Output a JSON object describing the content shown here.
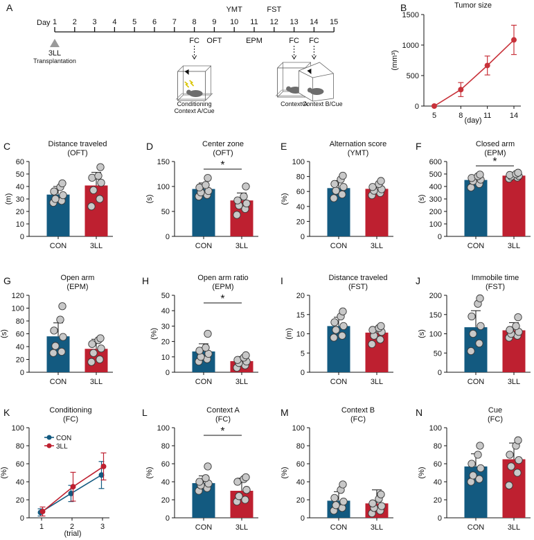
{
  "timeline": {
    "panel_label": "A",
    "day_label": "Day",
    "days": [
      "1",
      "2",
      "3",
      "4",
      "5",
      "6",
      "7",
      "8",
      "9",
      "10",
      "11",
      "12",
      "13",
      "14",
      "15"
    ],
    "above_labels": [
      {
        "day": 10,
        "text": "YMT"
      },
      {
        "day": 12,
        "text": "FST"
      }
    ],
    "below_labels": [
      {
        "day": 8,
        "text": "FC",
        "arrow": true
      },
      {
        "day": 9,
        "text": "OFT",
        "arrow": false
      },
      {
        "day": 11,
        "text": "EPM",
        "arrow": false
      },
      {
        "day": 13,
        "text": "FC",
        "arrow": true
      },
      {
        "day": 14,
        "text": "FC",
        "arrow": true
      }
    ],
    "transplant_label": "3LL",
    "transplant_sub": "Transplantation",
    "contexts": [
      {
        "day": 8,
        "line1": "Conditioning",
        "line2": "Context A/Cue"
      },
      {
        "day": 13,
        "line1": "Context A",
        "line2": ""
      },
      {
        "day": 14,
        "line1": "Context B/Cue",
        "line2": ""
      }
    ]
  },
  "colors": {
    "con": "#135a80",
    "lll": "#be2030",
    "dot": "#c8c8c8",
    "tumor": "#c8323a"
  },
  "chart_data": [
    {
      "id": "B",
      "type": "line",
      "panel_label": "B",
      "title": "Tumor size",
      "xlabel": "(day)",
      "ylabel": "(mm³)",
      "x": [
        5,
        8,
        11,
        14
      ],
      "values": [
        0,
        270,
        665,
        1085
      ],
      "err": [
        0,
        115,
        155,
        240
      ],
      "ylim": [
        0,
        1500
      ],
      "yticks": [
        0,
        500,
        1000,
        1500
      ]
    },
    {
      "id": "C",
      "type": "bar",
      "panel_label": "C",
      "title_lines": [
        "Distance traveled",
        "(OFT)"
      ],
      "ylabel": "(m)",
      "categories": [
        "CON",
        "3LL"
      ],
      "values": [
        33.5,
        40.8
      ],
      "err": [
        6.5,
        10.5
      ],
      "points": [
        [
          27,
          28.5,
          30,
          33,
          36,
          39.5,
          42.5
        ],
        [
          24,
          30,
          37,
          43,
          47,
          48.5,
          55.5
        ]
      ],
      "ylim": [
        0,
        60
      ],
      "yticks": [
        0,
        10,
        20,
        30,
        40,
        50,
        60
      ],
      "sig": ""
    },
    {
      "id": "D",
      "type": "bar",
      "panel_label": "D",
      "title_lines": [
        "Center zone",
        "(OFT)"
      ],
      "ylabel": "(s)",
      "categories": [
        "CON",
        "3LL"
      ],
      "values": [
        95,
        72
      ],
      "err": [
        12,
        15
      ],
      "points": [
        [
          80,
          83,
          88,
          91,
          98,
          103,
          117
        ],
        [
          43,
          55,
          62,
          66,
          72,
          80,
          100
        ]
      ],
      "ylim": [
        0,
        150
      ],
      "yticks": [
        0,
        50,
        100,
        150
      ],
      "sig": "*"
    },
    {
      "id": "E",
      "type": "bar",
      "panel_label": "E",
      "title_lines": [
        "Alternation score",
        "(YMT)"
      ],
      "ylabel": "(%)",
      "categories": [
        "CON",
        "3LL"
      ],
      "values": [
        64.5,
        63.5
      ],
      "err": [
        10,
        6
      ],
      "points": [
        [
          51,
          56,
          61,
          66,
          70,
          76,
          81
        ],
        [
          55,
          58,
          61,
          63,
          66,
          70,
          74
        ]
      ],
      "ylim": [
        0,
        100
      ],
      "yticks": [
        0,
        20,
        40,
        60,
        80,
        100
      ],
      "sig": ""
    },
    {
      "id": "F",
      "type": "bar",
      "panel_label": "F",
      "title_lines": [
        "Closed arm",
        "(EPM)"
      ],
      "ylabel": "(s)",
      "categories": [
        "CON",
        "3LL"
      ],
      "values": [
        452,
        487
      ],
      "err": [
        30,
        18
      ],
      "points": [
        [
          392,
          420,
          443,
          455,
          468,
          482,
          495
        ],
        [
          463,
          472,
          480,
          485,
          492,
          500,
          510
        ]
      ],
      "ylim": [
        0,
        600
      ],
      "yticks": [
        0,
        100,
        200,
        300,
        400,
        500,
        600
      ],
      "sig": "*"
    },
    {
      "id": "G",
      "type": "bar",
      "panel_label": "G",
      "title_lines": [
        "Open arm",
        "(EPM)"
      ],
      "ylabel": "(s)",
      "categories": [
        "CON",
        "3LL"
      ],
      "values": [
        56,
        36.5
      ],
      "err": [
        21,
        15
      ],
      "points": [
        [
          30,
          32,
          41,
          55,
          65,
          82,
          103
        ],
        [
          16,
          20,
          30,
          37,
          44,
          50,
          53
        ]
      ],
      "ylim": [
        0,
        120
      ],
      "yticks": [
        0,
        20,
        40,
        60,
        80,
        100,
        120
      ],
      "sig": ""
    },
    {
      "id": "H",
      "type": "bar",
      "panel_label": "H",
      "title_lines": [
        "Open arm ratio",
        "(EPM)"
      ],
      "ylabel": "(%)",
      "categories": [
        "CON",
        "3LL"
      ],
      "values": [
        13.5,
        7.2
      ],
      "err": [
        5,
        3
      ],
      "points": [
        [
          7,
          8.5,
          10,
          12,
          14,
          16,
          25
        ],
        [
          3,
          4.5,
          6,
          7,
          8,
          9.5,
          11
        ]
      ],
      "ylim": [
        0,
        50
      ],
      "yticks": [
        0,
        10,
        20,
        30,
        40,
        50
      ],
      "sig": "*"
    },
    {
      "id": "I",
      "type": "bar",
      "panel_label": "I",
      "title_lines": [
        "Distance  traveled",
        "(FST)"
      ],
      "ylabel": "(m)",
      "categories": [
        "CON",
        "3LL"
      ],
      "values": [
        12,
        10.3
      ],
      "err": [
        2.3,
        1.5
      ],
      "points": [
        [
          9,
          9.5,
          11,
          12,
          13,
          14.5,
          15.8
        ],
        [
          7.3,
          8.5,
          9.5,
          10.5,
          11,
          11.5,
          12
        ]
      ],
      "ylim": [
        0,
        20
      ],
      "yticks": [
        0,
        5,
        10,
        15,
        20
      ],
      "sig": ""
    },
    {
      "id": "J",
      "type": "bar",
      "panel_label": "J",
      "title_lines": [
        "Immobile time",
        "(FST)"
      ],
      "ylabel": "(s)",
      "categories": [
        "CON",
        "3LL"
      ],
      "values": [
        117,
        109
      ],
      "err": [
        43,
        20
      ],
      "points": [
        [
          55,
          75,
          100,
          120,
          145,
          178,
          192
        ],
        [
          90,
          95,
          100,
          105,
          110,
          120,
          143
        ]
      ],
      "ylim": [
        0,
        200
      ],
      "yticks": [
        0,
        50,
        100,
        150,
        200
      ],
      "sig": ""
    },
    {
      "id": "K",
      "type": "line",
      "panel_label": "K",
      "title_lines": [
        "Conditioning",
        "(FC)"
      ],
      "xlabel": "(trial)",
      "ylabel": "(%)",
      "x": [
        1,
        2,
        3
      ],
      "series": [
        {
          "name": "CON",
          "values": [
            6,
            27,
            47.5
          ],
          "err": [
            4,
            9,
            15
          ]
        },
        {
          "name": "3LL",
          "values": [
            7,
            34.5,
            57
          ],
          "err": [
            5,
            16,
            15
          ]
        }
      ],
      "ylim": [
        0,
        100
      ],
      "yticks": [
        0,
        20,
        40,
        60,
        80,
        100
      ]
    },
    {
      "id": "L",
      "type": "bar",
      "panel_label": "L",
      "title_lines": [
        "Context A",
        "(FC)"
      ],
      "ylabel": "(%)",
      "categories": [
        "CON",
        "3LL"
      ],
      "values": [
        38.5,
        30
      ],
      "err": [
        8,
        14
      ],
      "points": [
        [
          30,
          33,
          36,
          38,
          40,
          44,
          57
        ],
        [
          18,
          20,
          24,
          31,
          40,
          43,
          45
        ]
      ],
      "ylim": [
        0,
        100
      ],
      "yticks": [
        0,
        20,
        40,
        60,
        80,
        100
      ],
      "sig": "*"
    },
    {
      "id": "M",
      "type": "bar",
      "panel_label": "M",
      "title_lines": [
        "Context B",
        "(FC)"
      ],
      "ylabel": "(%)",
      "categories": [
        "CON",
        "3LL"
      ],
      "values": [
        19,
        16
      ],
      "err": [
        10,
        15
      ],
      "points": [
        [
          8,
          11,
          14,
          18,
          22,
          31,
          37
        ],
        [
          5,
          8,
          11,
          13,
          16,
          21,
          26
        ]
      ],
      "ylim": [
        0,
        100
      ],
      "yticks": [
        0,
        20,
        40,
        60,
        80,
        100
      ],
      "sig": ""
    },
    {
      "id": "N",
      "type": "bar",
      "panel_label": "N",
      "title_lines": [
        "Cue",
        "(FC)"
      ],
      "ylabel": "(%)",
      "categories": [
        "CON",
        "3LL"
      ],
      "values": [
        57,
        65
      ],
      "err": [
        14,
        18
      ],
      "points": [
        [
          40,
          43,
          47,
          55,
          60,
          70,
          80
        ],
        [
          36,
          50,
          57,
          64,
          70,
          80,
          86
        ]
      ],
      "ylim": [
        0,
        100
      ],
      "yticks": [
        0,
        20,
        40,
        60,
        80,
        100
      ],
      "sig": ""
    }
  ]
}
